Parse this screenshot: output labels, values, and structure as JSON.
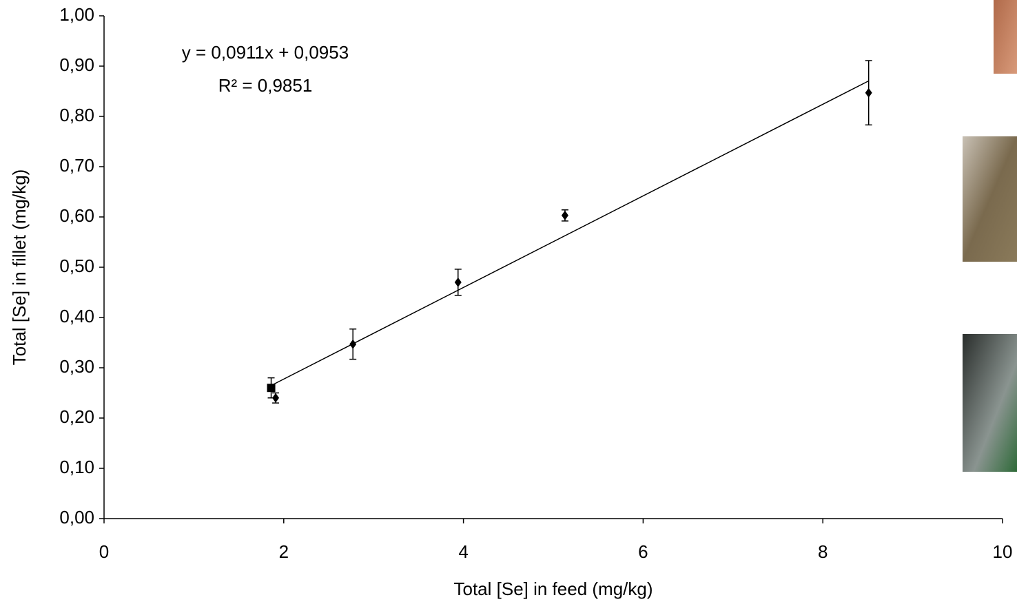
{
  "chart_data": {
    "type": "scatter",
    "xlabel": "Total [Se] in feed (mg/kg)",
    "ylabel": "Total [Se] in fillet (mg/kg)",
    "xlim": [
      0,
      10
    ],
    "xticks": [
      0,
      2,
      4,
      6,
      8,
      10
    ],
    "ylim": [
      0,
      1
    ],
    "yticks": [
      {
        "value": 0,
        "label": "0,00"
      },
      {
        "value": 0.1,
        "label": "0,10"
      },
      {
        "value": 0.2,
        "label": "0,20"
      },
      {
        "value": 0.3,
        "label": "0,30"
      },
      {
        "value": 0.4,
        "label": "0,40"
      },
      {
        "value": 0.5,
        "label": "0,50"
      },
      {
        "value": 0.6,
        "label": "0,60"
      },
      {
        "value": 0.7,
        "label": "0,70"
      },
      {
        "value": 0.8,
        "label": "0,80"
      },
      {
        "value": 0.9,
        "label": "0,90"
      },
      {
        "value": 1,
        "label": "1,00"
      }
    ],
    "grid": false,
    "series": [
      {
        "marker": "square",
        "color": "#000000",
        "x": [
          1.86
        ],
        "values": [
          0.26
        ],
        "errors": [
          0.02
        ]
      },
      {
        "marker": "diamond",
        "color": "#000000",
        "x": [
          1.91,
          2.77,
          3.94,
          5.13,
          8.51
        ],
        "values": [
          0.24,
          0.347,
          0.47,
          0.603,
          0.847
        ],
        "errors": [
          0.01,
          0.03,
          0.026,
          0.011,
          0.064
        ]
      }
    ],
    "trendline": {
      "slope": 0.0911,
      "intercept": 0.0953,
      "color": "#000000",
      "equation": "y = 0,0911x + 0,0953",
      "r2": "R² = 0,9851"
    }
  }
}
